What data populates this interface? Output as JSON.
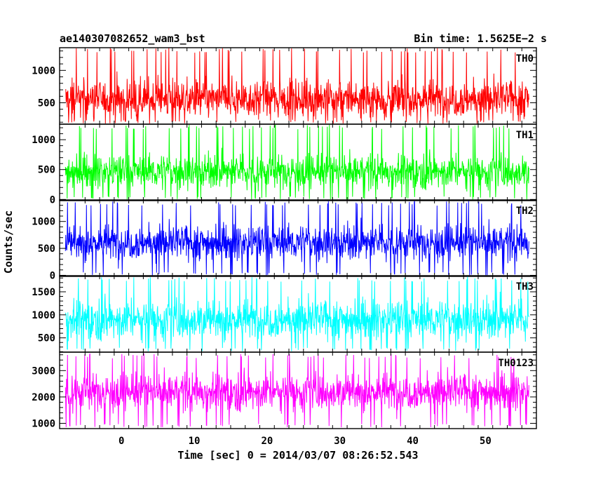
{
  "chart_data": {
    "type": "line",
    "title_left": "ae140307082652_wam3_bst",
    "title_right": "Bin time: 1.5625E−2 s",
    "xlabel": "Time [sec] 0 = 2014/03/07 08:26:52.543",
    "ylabel": "Counts/sec",
    "xlim": [
      -8.5,
      57
    ],
    "data_x_range": [
      -7.7,
      56
    ],
    "xticks": [
      0,
      10,
      20,
      30,
      40,
      50
    ],
    "xtick_labels": [
      "0",
      "10",
      "20",
      "30",
      "40",
      "50"
    ],
    "grid": false,
    "panels": [
      {
        "name": "TH0",
        "color": "#ff0000",
        "ylim": [
          170,
          1350
        ],
        "yticks": [
          500,
          1000
        ],
        "ytick_labels": [
          "500",
          "1000"
        ],
        "mean": 560,
        "spread": 260,
        "min": 180,
        "max": 1350
      },
      {
        "name": "TH1",
        "color": "#00ff00",
        "ylim": [
          -20,
          1260
        ],
        "yticks": [
          0,
          500,
          1000
        ],
        "ytick_labels": [
          "0",
          "500",
          "1000"
        ],
        "mean": 470,
        "spread": 250,
        "min": 0,
        "max": 1250
      },
      {
        "name": "TH2",
        "color": "#0000ff",
        "ylim": [
          -20,
          1400
        ],
        "yticks": [
          0,
          500,
          1000
        ],
        "ytick_labels": [
          "0",
          "500",
          "1000"
        ],
        "mean": 610,
        "spread": 290,
        "min": 0,
        "max": 1380
      },
      {
        "name": "TH3",
        "color": "#00ffff",
        "ylim": [
          190,
          1850
        ],
        "yticks": [
          500,
          1000,
          1500
        ],
        "ytick_labels": [
          "500",
          "1000",
          "1500"
        ],
        "mean": 900,
        "spread": 380,
        "min": 210,
        "max": 1830
      },
      {
        "name": "TH0123",
        "color": "#ff00ff",
        "ylim": [
          800,
          3700
        ],
        "yticks": [
          1000,
          2000,
          3000
        ],
        "ytick_labels": [
          "1000",
          "2000",
          "3000"
        ],
        "mean": 2200,
        "spread": 620,
        "min": 850,
        "max": 3650
      }
    ]
  }
}
